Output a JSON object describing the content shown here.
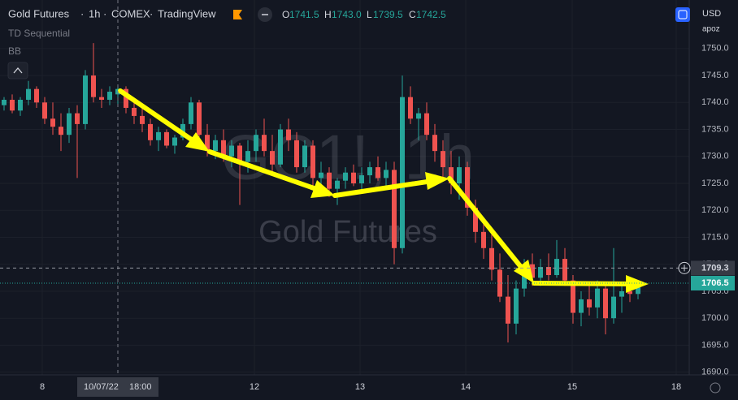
{
  "header": {
    "symbol_parts": [
      "Gold Futures",
      "1h",
      "COMEX",
      "TradingView"
    ],
    "ohlc": [
      {
        "key": "O",
        "value": "1741.5"
      },
      {
        "key": "H",
        "value": "1743.0"
      },
      {
        "key": "L",
        "value": "1739.5"
      },
      {
        "key": "C",
        "value": "1742.5"
      }
    ],
    "indicators": [
      "TD Sequential",
      "BB"
    ],
    "currency": "USD",
    "user": "apoz"
  },
  "watermark": {
    "symbol": "GC1!, 1h",
    "name": "Gold Futures"
  },
  "chart_data": {
    "type": "candlestick",
    "up_color": "#26a69a",
    "down_color": "#ef5350",
    "grid": true,
    "x": [
      0,
      1,
      2,
      3,
      4,
      5,
      6,
      7,
      8,
      9,
      10,
      11,
      12,
      13,
      14,
      15,
      16,
      17,
      18,
      19,
      20,
      21,
      22,
      23,
      24,
      25,
      26,
      27,
      28,
      29,
      30,
      31,
      32,
      33,
      34,
      35,
      36,
      37,
      38,
      39,
      40,
      41,
      42,
      43,
      44,
      45,
      46,
      47,
      48,
      49,
      50,
      51,
      52,
      53,
      54,
      55,
      56,
      57,
      58,
      59,
      60,
      61,
      62,
      63,
      64,
      65,
      66,
      67,
      68,
      69,
      70,
      71,
      72,
      73,
      74,
      75,
      76,
      77,
      78
    ],
    "open": [
      1739.5,
      1740.5,
      1738.5,
      1740.5,
      1742.5,
      1740,
      1737,
      1735.5,
      1734,
      1738,
      1736,
      1745,
      1741,
      1740.5,
      1741.5,
      1742.5,
      1739,
      1737.5,
      1736,
      1733,
      1734.5,
      1732,
      1733.5,
      1736,
      1740,
      1734,
      1731,
      1733,
      1730,
      1732,
      1729,
      1731,
      1734,
      1731,
      1728.5,
      1735,
      1733,
      1728,
      1732,
      1726,
      1727,
      1724,
      1725.5,
      1727,
      1725,
      1726.5,
      1728,
      1726,
      1727.5,
      1713,
      1741,
      1737,
      1738,
      1734,
      1731,
      1728,
      1725,
      1728,
      1720.5,
      1716,
      1713,
      1709,
      1704,
      1699,
      1705.5,
      1710,
      1707.5,
      1709.5,
      1708,
      1711,
      1707,
      1701,
      1703.5,
      1702,
      1705.5,
      1700,
      1704,
      1705,
      1704.5
    ],
    "high": [
      1741,
      1741.5,
      1741,
      1744,
      1743,
      1741,
      1740,
      1738,
      1739,
      1739.5,
      1746,
      1751,
      1742.5,
      1743,
      1743,
      1743,
      1740,
      1739,
      1737,
      1735.5,
      1735,
      1734,
      1737,
      1741,
      1740.5,
      1736,
      1734,
      1735,
      1733,
      1732.5,
      1733,
      1735,
      1737,
      1734,
      1736,
      1737,
      1734.5,
      1733,
      1733,
      1729,
      1728,
      1726,
      1728,
      1728.5,
      1728,
      1729,
      1730,
      1729,
      1729,
      1745,
      1743,
      1739,
      1740,
      1736,
      1733,
      1731,
      1730,
      1729,
      1722,
      1718,
      1716,
      1712,
      1708,
      1707,
      1711,
      1712,
      1711,
      1712,
      1714.5,
      1713,
      1708,
      1705,
      1706,
      1707,
      1706.5,
      1713,
      1706,
      1706,
      1706.5
    ],
    "low": [
      1738.5,
      1738,
      1737.5,
      1739.5,
      1739,
      1736,
      1734,
      1731,
      1732.5,
      1726,
      1735,
      1740,
      1739,
      1739.5,
      1739.5,
      1738,
      1736,
      1734.5,
      1732,
      1731,
      1731.5,
      1730.5,
      1733,
      1735,
      1733,
      1730,
      1729.5,
      1729,
      1728,
      1721,
      1727,
      1729,
      1730,
      1727,
      1728,
      1731,
      1727,
      1727,
      1724,
      1723.5,
      1722.5,
      1721,
      1724,
      1724.5,
      1723.5,
      1725,
      1725.5,
      1724,
      1710,
      1712,
      1736,
      1733,
      1733,
      1729,
      1726,
      1723,
      1722,
      1719,
      1714,
      1711,
      1707,
      1703,
      1695.5,
      1697,
      1704,
      1706,
      1706,
      1707,
      1707.5,
      1706,
      1699,
      1698.5,
      1700.5,
      1700,
      1697,
      1699,
      1701,
      1703,
      1703.5
    ],
    "close": [
      1740.5,
      1738.5,
      1740.5,
      1742.5,
      1740,
      1737,
      1735.5,
      1734,
      1738,
      1736,
      1745,
      1741,
      1740.5,
      1742,
      1742.5,
      1739,
      1737.5,
      1736,
      1733,
      1734.5,
      1732,
      1733.5,
      1736,
      1740,
      1734,
      1731,
      1733,
      1730,
      1732,
      1729,
      1731,
      1734,
      1731,
      1728.5,
      1735,
      1733,
      1728,
      1732,
      1726,
      1727,
      1724,
      1725.5,
      1727,
      1725,
      1726.5,
      1728,
      1726,
      1727.5,
      1713,
      1741,
      1737,
      1738,
      1734,
      1731,
      1728,
      1725,
      1728,
      1720.5,
      1716,
      1713,
      1709,
      1704,
      1699,
      1705.5,
      1710,
      1707.5,
      1709.5,
      1708,
      1711,
      1707,
      1701,
      1703.5,
      1702,
      1705.5,
      1700,
      1704,
      1705,
      1704.5,
      1706.5
    ],
    "xlim": [
      -0.5,
      84.3
    ],
    "ylim": [
      1689.5,
      1759
    ],
    "xticks": [
      {
        "value": 4.7,
        "label": "8"
      },
      {
        "value": 30.8,
        "label": "12"
      },
      {
        "value": 43.8,
        "label": "13"
      },
      {
        "value": 56.8,
        "label": "14"
      },
      {
        "value": 69.9,
        "label": "15"
      },
      {
        "value": 82.7,
        "label": "18"
      }
    ],
    "yticks": [
      {
        "value": 1690,
        "label": "1690.0"
      },
      {
        "value": 1695,
        "label": "1695.0"
      },
      {
        "value": 1700,
        "label": "1700.0"
      },
      {
        "value": 1705,
        "label": "1705.0"
      },
      {
        "value": 1710,
        "label": "1710.0"
      },
      {
        "value": 1715,
        "label": "1715.0"
      },
      {
        "value": 1720,
        "label": "1720.0"
      },
      {
        "value": 1725,
        "label": "1725.0"
      },
      {
        "value": 1730,
        "label": "1730.0"
      },
      {
        "value": 1735,
        "label": "1735.0"
      },
      {
        "value": 1740,
        "label": "1740.0"
      },
      {
        "value": 1745,
        "label": "1745.0"
      },
      {
        "value": 1750,
        "label": "1750.0"
      }
    ],
    "crosshair": {
      "date": "10/07/22",
      "time": "18:00",
      "price": {
        "value": 1709.3,
        "label": "1709.3"
      }
    },
    "last_price": {
      "value": 1706.5,
      "label": "1706.5"
    }
  }
}
